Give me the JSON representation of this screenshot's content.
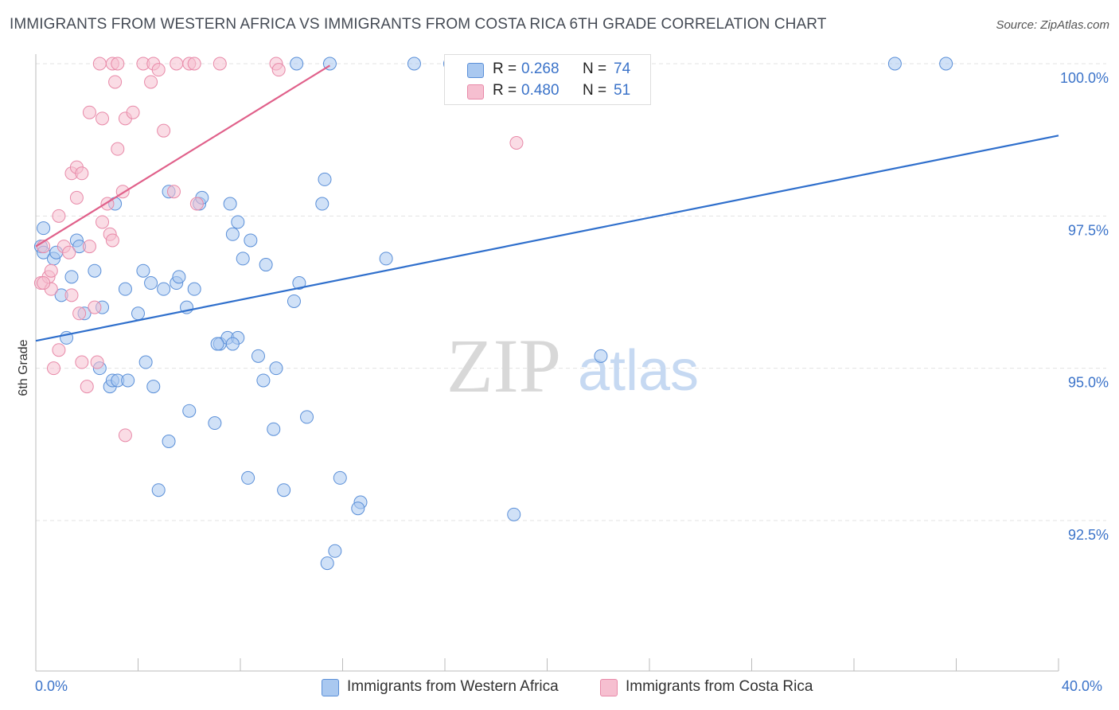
{
  "header": {
    "title": "IMMIGRANTS FROM WESTERN AFRICA VS IMMIGRANTS FROM COSTA RICA 6TH GRADE CORRELATION CHART",
    "source": "Source: ZipAtlas.com"
  },
  "watermark": {
    "zip": "ZIP",
    "atlas": "atlas"
  },
  "legend": {
    "rows": [
      {
        "r_label": "R =",
        "r_value": "0.268",
        "n_label": "N =",
        "n_value": "74"
      },
      {
        "r_label": "R =",
        "r_value": "0.480",
        "n_label": "N =",
        "n_value": "51"
      }
    ]
  },
  "colors": {
    "blue_fill": "#a9c8f0",
    "blue_stroke": "#5a8fd8",
    "blue_line": "#2f6fcc",
    "pink_fill": "#f6bfd0",
    "pink_stroke": "#e889a8",
    "pink_line": "#e0608a",
    "axis_text": "#3b73c9",
    "grid": "#e3e3e3"
  },
  "chart_data": {
    "type": "scatter",
    "title": "IMMIGRANTS FROM WESTERN AFRICA VS IMMIGRANTS FROM COSTA RICA 6TH GRADE CORRELATION CHART",
    "xlabel": "",
    "ylabel": "6th Grade",
    "xlim": [
      0,
      40
    ],
    "ylim": [
      90.3,
      100.3
    ],
    "x_tick_labels": [
      "0.0%",
      "40.0%"
    ],
    "y_ticks": [
      {
        "value": 92.5,
        "label": "92.5%"
      },
      {
        "value": 95.0,
        "label": "95.0%"
      },
      {
        "value": 97.5,
        "label": "97.5%"
      },
      {
        "value": 100.0,
        "label": "100.0%"
      }
    ],
    "grid": true,
    "legend_position": "top-center",
    "series": [
      {
        "name": "Immigrants from Western Africa",
        "color": "#a9c8f0",
        "trend": {
          "x": [
            0.0,
            40.0
          ],
          "y": [
            95.45,
            98.82
          ]
        },
        "points": [
          [
            0.3,
            97.3
          ],
          [
            0.2,
            97.0
          ],
          [
            0.3,
            96.9
          ],
          [
            0.7,
            96.8
          ],
          [
            0.8,
            96.9
          ],
          [
            1.6,
            97.1
          ],
          [
            1.7,
            97.0
          ],
          [
            1.4,
            96.5
          ],
          [
            2.3,
            96.6
          ],
          [
            1.0,
            96.2
          ],
          [
            1.9,
            95.9
          ],
          [
            2.6,
            96.0
          ],
          [
            3.5,
            96.3
          ],
          [
            4.0,
            95.9
          ],
          [
            4.2,
            96.6
          ],
          [
            4.5,
            96.4
          ],
          [
            5.0,
            96.3
          ],
          [
            5.2,
            97.9
          ],
          [
            5.5,
            96.4
          ],
          [
            5.6,
            96.5
          ],
          [
            5.9,
            96.0
          ],
          [
            6.2,
            96.3
          ],
          [
            6.4,
            97.7
          ],
          [
            7.2,
            95.4
          ],
          [
            7.5,
            95.5
          ],
          [
            7.1,
            95.4
          ],
          [
            7.9,
            95.5
          ],
          [
            7.7,
            95.4
          ],
          [
            7.6,
            97.7
          ],
          [
            7.9,
            97.4
          ],
          [
            7.7,
            97.2
          ],
          [
            8.1,
            96.8
          ],
          [
            8.4,
            97.1
          ],
          [
            9.0,
            96.7
          ],
          [
            10.3,
            96.4
          ],
          [
            10.1,
            96.1
          ],
          [
            1.2,
            95.5
          ],
          [
            2.5,
            95.0
          ],
          [
            2.9,
            94.7
          ],
          [
            3.0,
            94.8
          ],
          [
            3.2,
            94.8
          ],
          [
            3.6,
            94.8
          ],
          [
            4.3,
            95.1
          ],
          [
            4.6,
            94.7
          ],
          [
            4.8,
            93.0
          ],
          [
            5.2,
            93.8
          ],
          [
            6.0,
            94.3
          ],
          [
            7.0,
            94.1
          ],
          [
            8.3,
            93.2
          ],
          [
            8.7,
            95.2
          ],
          [
            8.9,
            94.8
          ],
          [
            9.4,
            95.0
          ],
          [
            9.3,
            94.0
          ],
          [
            9.7,
            93.0
          ],
          [
            10.6,
            94.2
          ],
          [
            11.2,
            97.7
          ],
          [
            11.3,
            98.1
          ],
          [
            11.9,
            93.2
          ],
          [
            12.7,
            92.8
          ],
          [
            12.6,
            92.7
          ],
          [
            11.7,
            92.0
          ],
          [
            11.4,
            91.8
          ],
          [
            13.7,
            96.8
          ],
          [
            18.7,
            92.6
          ],
          [
            22.1,
            95.2
          ],
          [
            10.2,
            100.0
          ],
          [
            11.5,
            100.0
          ],
          [
            14.8,
            100.0
          ],
          [
            16.2,
            100.0
          ],
          [
            16.6,
            100.0
          ],
          [
            33.6,
            100.0
          ],
          [
            35.6,
            100.0
          ],
          [
            3.1,
            97.7
          ],
          [
            6.5,
            97.8
          ]
        ]
      },
      {
        "name": "Immigrants from Costa Rica",
        "color": "#f6bfd0",
        "trend": {
          "x": [
            0.0,
            11.5
          ],
          "y": [
            97.0,
            99.97
          ]
        },
        "points": [
          [
            0.3,
            97.0
          ],
          [
            0.2,
            96.4
          ],
          [
            0.5,
            96.5
          ],
          [
            0.6,
            96.6
          ],
          [
            0.9,
            97.5
          ],
          [
            1.1,
            97.0
          ],
          [
            1.3,
            96.9
          ],
          [
            0.6,
            96.3
          ],
          [
            1.4,
            96.2
          ],
          [
            1.6,
            97.8
          ],
          [
            1.4,
            98.2
          ],
          [
            1.6,
            98.3
          ],
          [
            1.8,
            98.2
          ],
          [
            2.1,
            97.0
          ],
          [
            2.6,
            97.4
          ],
          [
            2.8,
            97.7
          ],
          [
            2.9,
            97.2
          ],
          [
            3.0,
            97.1
          ],
          [
            3.4,
            97.9
          ],
          [
            3.2,
            98.6
          ],
          [
            2.1,
            99.2
          ],
          [
            2.6,
            99.1
          ],
          [
            3.5,
            99.1
          ],
          [
            3.8,
            99.2
          ],
          [
            4.5,
            99.7
          ],
          [
            3.1,
            99.7
          ],
          [
            5.0,
            98.9
          ],
          [
            5.4,
            97.9
          ],
          [
            6.3,
            97.7
          ],
          [
            5.5,
            100.0
          ],
          [
            6.0,
            100.0
          ],
          [
            6.2,
            100.0
          ],
          [
            4.2,
            100.0
          ],
          [
            4.6,
            100.0
          ],
          [
            4.8,
            99.9
          ],
          [
            2.5,
            100.0
          ],
          [
            3.0,
            100.0
          ],
          [
            3.2,
            100.0
          ],
          [
            7.2,
            100.0
          ],
          [
            9.4,
            100.0
          ],
          [
            9.5,
            99.9
          ],
          [
            18.8,
            98.7
          ],
          [
            0.9,
            95.3
          ],
          [
            1.8,
            95.1
          ],
          [
            2.4,
            95.1
          ],
          [
            0.7,
            95.0
          ],
          [
            1.7,
            95.9
          ],
          [
            2.3,
            96.0
          ],
          [
            2.0,
            94.7
          ],
          [
            3.5,
            93.9
          ],
          [
            0.3,
            96.4
          ]
        ]
      }
    ]
  }
}
